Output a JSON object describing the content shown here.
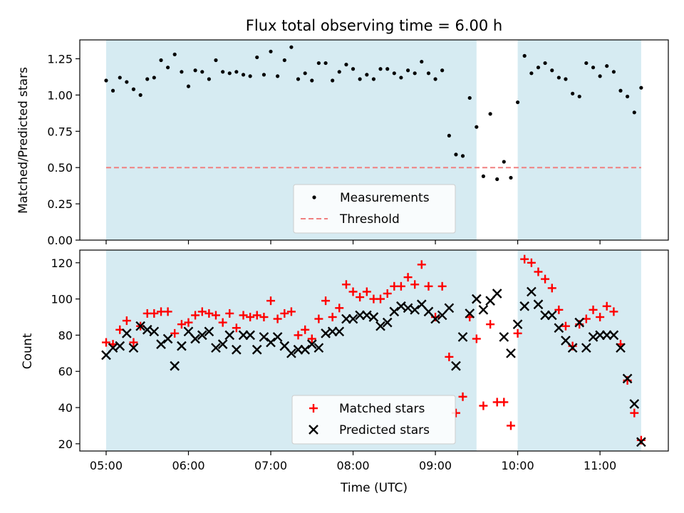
{
  "chart_data": [
    {
      "type": "scatter",
      "title": "Flux total observing time = 6.00 h",
      "xlabel": "",
      "ylabel": "Matched/Predicted stars",
      "xlim": [
        4.68,
        11.83
      ],
      "ylim": [
        0.0,
        1.38
      ],
      "yticks": [
        0.0,
        0.25,
        0.5,
        0.75,
        1.0,
        1.25
      ],
      "ytick_labels": [
        "0.00",
        "0.25",
        "0.50",
        "0.75",
        "1.00",
        "1.25"
      ],
      "xticks": [
        5,
        6,
        7,
        8,
        9,
        10,
        11
      ],
      "shaded_intervals": [
        [
          5.0,
          9.5
        ],
        [
          10.0,
          11.5
        ]
      ],
      "shade_color": "#add8e6",
      "threshold": {
        "name": "Threshold",
        "value": 0.5,
        "color": "#f08080",
        "x": [
          5.0,
          11.5
        ]
      },
      "legend": {
        "placement": "lower center",
        "entries": [
          "Measurements",
          "Threshold"
        ]
      },
      "grid": false,
      "series": [
        {
          "name": "Measurements",
          "marker": "dot",
          "color": "#000000",
          "x": [
            5.0,
            5.083,
            5.167,
            5.25,
            5.333,
            5.417,
            5.5,
            5.583,
            5.667,
            5.75,
            5.833,
            5.917,
            6.0,
            6.083,
            6.167,
            6.25,
            6.333,
            6.417,
            6.5,
            6.583,
            6.667,
            6.75,
            6.833,
            6.917,
            7.0,
            7.083,
            7.167,
            7.25,
            7.333,
            7.417,
            7.5,
            7.583,
            7.667,
            7.75,
            7.833,
            7.917,
            8.0,
            8.083,
            8.167,
            8.25,
            8.333,
            8.417,
            8.5,
            8.583,
            8.667,
            8.75,
            8.833,
            8.917,
            9.0,
            9.083,
            9.167,
            9.25,
            9.333,
            9.417,
            9.5,
            9.583,
            9.667,
            9.75,
            9.833,
            9.917,
            10.0,
            10.083,
            10.167,
            10.25,
            10.333,
            10.417,
            10.5,
            10.583,
            10.667,
            10.75,
            10.833,
            10.917,
            11.0,
            11.083,
            11.167,
            11.25,
            11.333,
            11.417,
            11.5
          ],
          "y": [
            1.1,
            1.03,
            1.12,
            1.09,
            1.04,
            1.0,
            1.11,
            1.12,
            1.24,
            1.19,
            1.28,
            1.16,
            1.06,
            1.17,
            1.16,
            1.11,
            1.24,
            1.16,
            1.15,
            1.16,
            1.14,
            1.13,
            1.26,
            1.14,
            1.3,
            1.13,
            1.24,
            1.33,
            1.11,
            1.15,
            1.1,
            1.22,
            1.22,
            1.1,
            1.16,
            1.21,
            1.18,
            1.11,
            1.14,
            1.11,
            1.18,
            1.18,
            1.15,
            1.12,
            1.17,
            1.15,
            1.23,
            1.15,
            1.11,
            1.17,
            0.72,
            0.59,
            0.58,
            0.98,
            0.78,
            0.44,
            0.87,
            0.42,
            0.54,
            0.43,
            0.95,
            1.27,
            1.15,
            1.19,
            1.22,
            1.17,
            1.12,
            1.11,
            1.01,
            0.99,
            1.22,
            1.19,
            1.13,
            1.2,
            1.16,
            1.03,
            0.99,
            0.88,
            1.05
          ]
        }
      ]
    },
    {
      "type": "scatter",
      "title": "",
      "xlabel": "Time (UTC)",
      "ylabel": "Count",
      "xlim": [
        4.68,
        11.83
      ],
      "ylim": [
        16,
        127
      ],
      "yticks": [
        20,
        40,
        60,
        80,
        100,
        120
      ],
      "ytick_labels": [
        "20",
        "40",
        "60",
        "80",
        "100",
        "120"
      ],
      "xticks": [
        5,
        6,
        7,
        8,
        9,
        10,
        11
      ],
      "xtick_labels": [
        "05:00",
        "06:00",
        "07:00",
        "08:00",
        "09:00",
        "10:00",
        "11:00"
      ],
      "shaded_intervals": [
        [
          5.0,
          9.5
        ],
        [
          10.0,
          11.5
        ]
      ],
      "shade_color": "#add8e6",
      "legend": {
        "placement": "lower center",
        "entries": [
          "Matched stars",
          "Predicted stars"
        ]
      },
      "grid": false,
      "series": [
        {
          "name": "Matched stars",
          "marker": "plus",
          "color": "#ff0000",
          "x": [
            5.0,
            5.083,
            5.167,
            5.25,
            5.333,
            5.417,
            5.5,
            5.583,
            5.667,
            5.75,
            5.833,
            5.917,
            6.0,
            6.083,
            6.167,
            6.25,
            6.333,
            6.417,
            6.5,
            6.583,
            6.667,
            6.75,
            6.833,
            6.917,
            7.0,
            7.083,
            7.167,
            7.25,
            7.333,
            7.417,
            7.5,
            7.583,
            7.667,
            7.75,
            7.833,
            7.917,
            8.0,
            8.083,
            8.167,
            8.25,
            8.333,
            8.417,
            8.5,
            8.583,
            8.667,
            8.75,
            8.833,
            8.917,
            9.0,
            9.083,
            9.167,
            9.25,
            9.333,
            9.417,
            9.5,
            9.583,
            9.667,
            9.75,
            9.833,
            9.917,
            10.0,
            10.083,
            10.167,
            10.25,
            10.333,
            10.417,
            10.5,
            10.583,
            10.667,
            10.75,
            10.833,
            10.917,
            11.0,
            11.083,
            11.167,
            11.25,
            11.333,
            11.417,
            11.5
          ],
          "y": [
            76,
            75,
            83,
            88,
            76,
            85,
            92,
            92,
            93,
            93,
            81,
            86,
            87,
            91,
            93,
            92,
            91,
            87,
            92,
            84,
            91,
            90,
            91,
            90,
            99,
            89,
            92,
            93,
            80,
            83,
            78,
            89,
            99,
            90,
            95,
            108,
            104,
            101,
            104,
            100,
            100,
            103,
            107,
            107,
            112,
            108,
            119,
            107,
            90,
            107,
            68,
            37,
            46,
            90,
            78,
            41,
            86,
            43,
            43,
            30,
            81,
            122,
            120,
            115,
            111,
            106,
            94,
            85,
            74,
            86,
            89,
            94,
            90,
            96,
            93,
            75,
            55,
            37,
            22
          ]
        },
        {
          "name": "Predicted stars",
          "marker": "x",
          "color": "#000000",
          "x": [
            5.0,
            5.083,
            5.167,
            5.25,
            5.333,
            5.417,
            5.5,
            5.583,
            5.667,
            5.75,
            5.833,
            5.917,
            6.0,
            6.083,
            6.167,
            6.25,
            6.333,
            6.417,
            6.5,
            6.583,
            6.667,
            6.75,
            6.833,
            6.917,
            7.0,
            7.083,
            7.167,
            7.25,
            7.333,
            7.417,
            7.5,
            7.583,
            7.667,
            7.75,
            7.833,
            7.917,
            8.0,
            8.083,
            8.167,
            8.25,
            8.333,
            8.417,
            8.5,
            8.583,
            8.667,
            8.75,
            8.833,
            8.917,
            9.0,
            9.083,
            9.167,
            9.25,
            9.333,
            9.417,
            9.5,
            9.583,
            9.667,
            9.75,
            9.833,
            9.917,
            10.0,
            10.083,
            10.167,
            10.25,
            10.333,
            10.417,
            10.5,
            10.583,
            10.667,
            10.75,
            10.833,
            10.917,
            11.0,
            11.083,
            11.167,
            11.25,
            11.333,
            11.417,
            11.5
          ],
          "y": [
            69,
            73,
            74,
            81,
            73,
            85,
            83,
            82,
            75,
            78,
            63,
            74,
            82,
            78,
            80,
            82,
            73,
            75,
            80,
            72,
            80,
            80,
            72,
            79,
            76,
            79,
            74,
            70,
            72,
            72,
            75,
            73,
            81,
            82,
            82,
            89,
            89,
            91,
            91,
            90,
            85,
            87,
            93,
            96,
            95,
            94,
            97,
            93,
            89,
            91,
            95,
            63,
            79,
            92,
            100,
            94,
            99,
            103,
            79,
            70,
            86,
            96,
            104,
            97,
            91,
            91,
            84,
            77,
            73,
            87,
            73,
            79,
            80,
            80,
            80,
            73,
            56,
            42,
            21
          ]
        }
      ]
    }
  ]
}
